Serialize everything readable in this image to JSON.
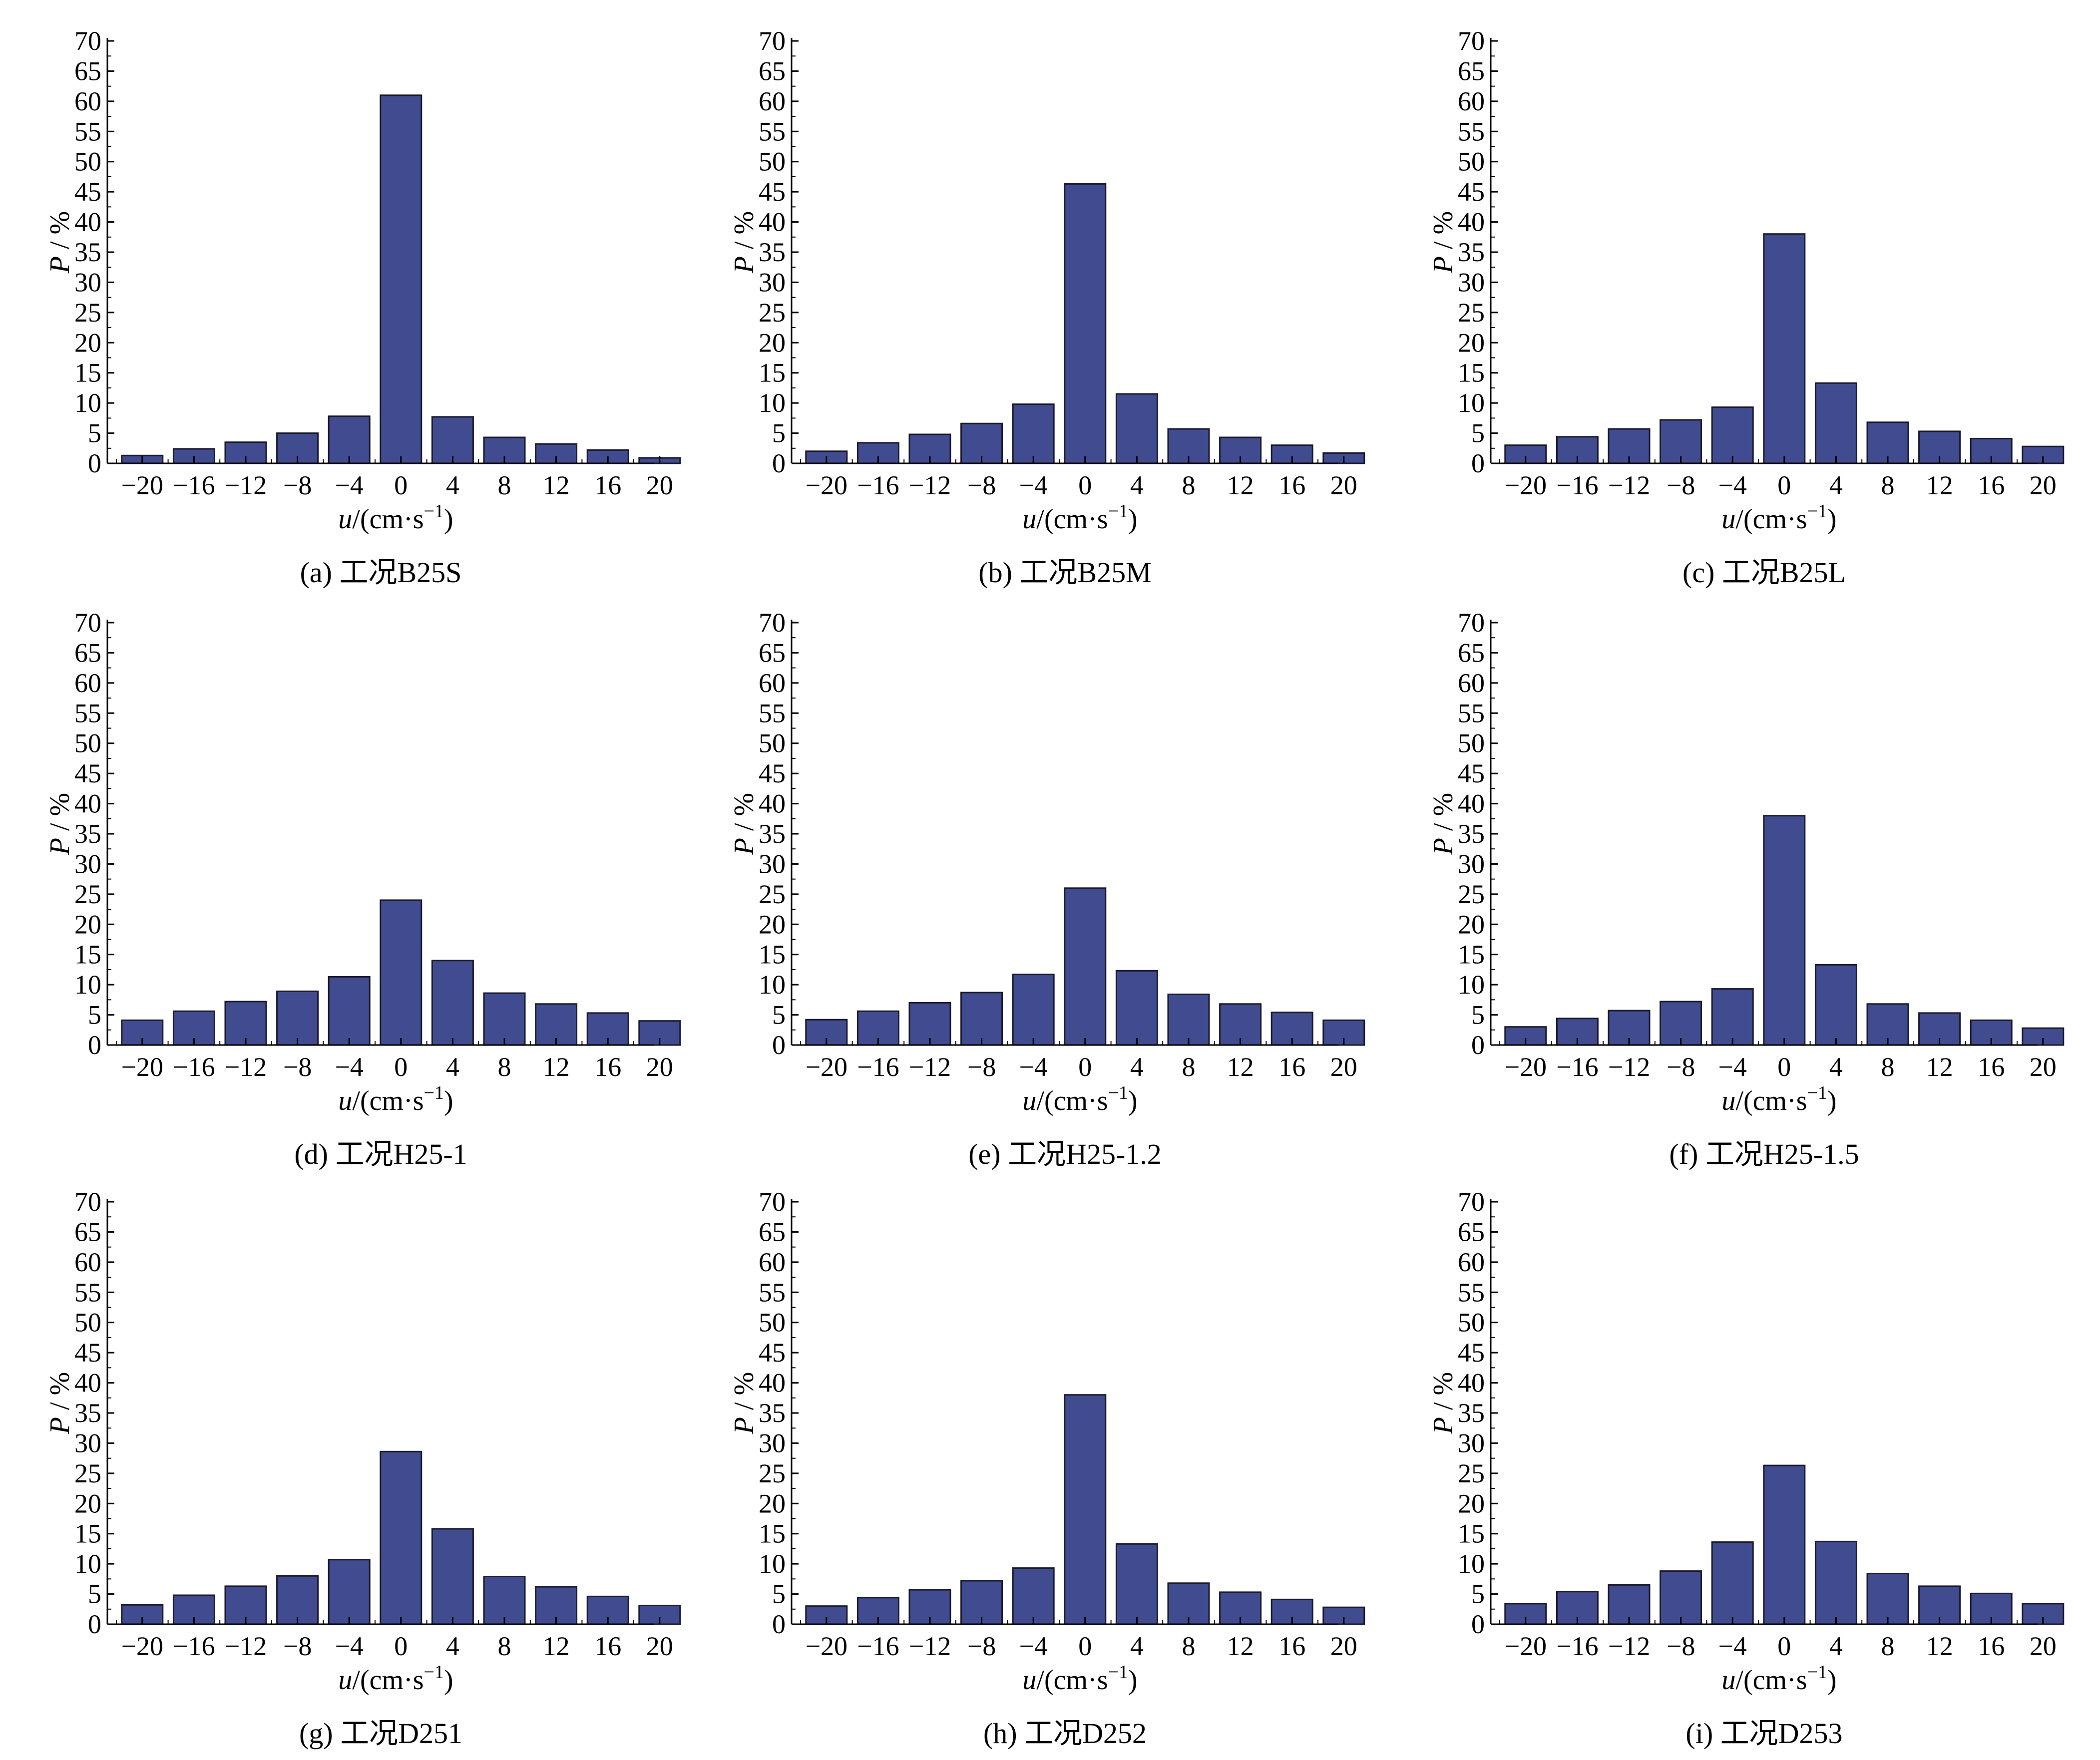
{
  "chart_data": [
    {
      "type": "bar",
      "caption": "(a) 工况B25S",
      "ylabel": "P / %",
      "xlabel": "u/(cm·s⁻¹)",
      "x_ticks": [
        "−20",
        "−16",
        "−12",
        "−8",
        "−4",
        "0",
        "4",
        "8",
        "12",
        "16",
        "20"
      ],
      "y_ticks": [
        "0",
        "5",
        "10",
        "15",
        "20",
        "25",
        "30",
        "35",
        "40",
        "45",
        "50",
        "55",
        "60",
        "65",
        "70"
      ],
      "ylim": [
        0,
        70
      ],
      "categories": [
        -20,
        -16,
        -12,
        -8,
        -4,
        0,
        4,
        8,
        12,
        16,
        20
      ],
      "values": [
        1.3,
        2.4,
        3.5,
        5.0,
        7.8,
        61.0,
        7.7,
        4.3,
        3.2,
        2.2,
        0.9
      ],
      "bar_color": "#414b8f"
    },
    {
      "type": "bar",
      "caption": "(b) 工况B25M",
      "ylabel": "P / %",
      "xlabel": "u/(cm·s⁻¹)",
      "x_ticks": [
        "−20",
        "−16",
        "−12",
        "−8",
        "−4",
        "0",
        "4",
        "8",
        "12",
        "16",
        "20"
      ],
      "y_ticks": [
        "0",
        "5",
        "10",
        "15",
        "20",
        "25",
        "30",
        "35",
        "40",
        "45",
        "50",
        "55",
        "60",
        "65",
        "70"
      ],
      "ylim": [
        0,
        70
      ],
      "categories": [
        -20,
        -16,
        -12,
        -8,
        -4,
        0,
        4,
        8,
        12,
        16,
        20
      ],
      "values": [
        2.0,
        3.4,
        4.8,
        6.6,
        9.8,
        46.3,
        11.5,
        5.7,
        4.3,
        3.0,
        1.7
      ],
      "bar_color": "#414b8f"
    },
    {
      "type": "bar",
      "caption": "(c) 工况B25L",
      "ylabel": "P / %",
      "xlabel": "u/(cm·s⁻¹)",
      "x_ticks": [
        "−20",
        "−16",
        "−12",
        "−8",
        "−4",
        "0",
        "4",
        "8",
        "12",
        "16",
        "20"
      ],
      "y_ticks": [
        "0",
        "5",
        "10",
        "15",
        "20",
        "25",
        "30",
        "35",
        "40",
        "45",
        "50",
        "55",
        "60",
        "65",
        "70"
      ],
      "ylim": [
        0,
        70
      ],
      "categories": [
        -20,
        -16,
        -12,
        -8,
        -4,
        0,
        4,
        8,
        12,
        16,
        20
      ],
      "values": [
        3.0,
        4.4,
        5.7,
        7.2,
        9.3,
        38.0,
        13.3,
        6.8,
        5.3,
        4.1,
        2.8
      ],
      "bar_color": "#414b8f"
    },
    {
      "type": "bar",
      "caption": "(d) 工况H25-1",
      "ylabel": "P / %",
      "xlabel": "u/(cm·s⁻¹)",
      "x_ticks": [
        "−20",
        "−16",
        "−12",
        "−8",
        "−4",
        "0",
        "4",
        "8",
        "12",
        "16",
        "20"
      ],
      "y_ticks": [
        "0",
        "5",
        "10",
        "15",
        "20",
        "25",
        "30",
        "35",
        "40",
        "45",
        "50",
        "55",
        "60",
        "65",
        "70"
      ],
      "ylim": [
        0,
        70
      ],
      "categories": [
        -20,
        -16,
        -12,
        -8,
        -4,
        0,
        4,
        8,
        12,
        16,
        20
      ],
      "values": [
        4.1,
        5.6,
        7.2,
        8.9,
        11.3,
        24.0,
        14.0,
        8.6,
        6.8,
        5.3,
        4.0
      ],
      "bar_color": "#414b8f"
    },
    {
      "type": "bar",
      "caption": "(e) 工况H25-1.2",
      "ylabel": "P / %",
      "xlabel": "u/(cm·s⁻¹)",
      "x_ticks": [
        "−20",
        "−16",
        "−12",
        "−8",
        "−4",
        "0",
        "4",
        "8",
        "12",
        "16",
        "20"
      ],
      "y_ticks": [
        "0",
        "5",
        "10",
        "15",
        "20",
        "25",
        "30",
        "35",
        "40",
        "45",
        "50",
        "55",
        "60",
        "65",
        "70"
      ],
      "ylim": [
        0,
        70
      ],
      "categories": [
        -20,
        -16,
        -12,
        -8,
        -4,
        0,
        4,
        8,
        12,
        16,
        20
      ],
      "values": [
        4.2,
        5.6,
        7.0,
        8.7,
        11.7,
        26.0,
        12.3,
        8.4,
        6.8,
        5.4,
        4.1
      ],
      "bar_color": "#414b8f"
    },
    {
      "type": "bar",
      "caption": "(f) 工况H25-1.5",
      "ylabel": "P / %",
      "xlabel": "u/(cm·s⁻¹)",
      "x_ticks": [
        "−20",
        "−16",
        "−12",
        "−8",
        "−4",
        "0",
        "4",
        "8",
        "12",
        "16",
        "20"
      ],
      "y_ticks": [
        "0",
        "5",
        "10",
        "15",
        "20",
        "25",
        "30",
        "35",
        "40",
        "45",
        "50",
        "55",
        "60",
        "65",
        "70"
      ],
      "ylim": [
        0,
        70
      ],
      "categories": [
        -20,
        -16,
        -12,
        -8,
        -4,
        0,
        4,
        8,
        12,
        16,
        20
      ],
      "values": [
        3.0,
        4.4,
        5.7,
        7.2,
        9.3,
        38.0,
        13.3,
        6.8,
        5.3,
        4.1,
        2.8
      ],
      "bar_color": "#414b8f"
    },
    {
      "type": "bar",
      "caption": "(g) 工况D251",
      "ylabel": "P / %",
      "xlabel": "u/(cm·s⁻¹)",
      "x_ticks": [
        "−20",
        "−16",
        "−12",
        "−8",
        "−4",
        "0",
        "4",
        "8",
        "12",
        "16",
        "20"
      ],
      "y_ticks": [
        "0",
        "5",
        "10",
        "15",
        "20",
        "25",
        "30",
        "35",
        "40",
        "45",
        "50",
        "55",
        "60",
        "65",
        "70"
      ],
      "ylim": [
        0,
        70
      ],
      "categories": [
        -20,
        -16,
        -12,
        -8,
        -4,
        0,
        4,
        8,
        12,
        16,
        20
      ],
      "values": [
        3.2,
        4.8,
        6.3,
        8.0,
        10.7,
        28.6,
        15.8,
        7.9,
        6.2,
        4.6,
        3.1
      ],
      "bar_color": "#414b8f"
    },
    {
      "type": "bar",
      "caption": "(h) 工况D252",
      "ylabel": "P / %",
      "xlabel": "u/(cm·s⁻¹)",
      "x_ticks": [
        "−20",
        "−16",
        "−12",
        "−8",
        "−4",
        "0",
        "4",
        "8",
        "12",
        "16",
        "20"
      ],
      "y_ticks": [
        "0",
        "5",
        "10",
        "15",
        "20",
        "25",
        "30",
        "35",
        "40",
        "45",
        "50",
        "55",
        "60",
        "65",
        "70"
      ],
      "ylim": [
        0,
        70
      ],
      "categories": [
        -20,
        -16,
        -12,
        -8,
        -4,
        0,
        4,
        8,
        12,
        16,
        20
      ],
      "values": [
        3.0,
        4.4,
        5.7,
        7.2,
        9.3,
        38.0,
        13.3,
        6.8,
        5.3,
        4.1,
        2.8
      ],
      "bar_color": "#414b8f"
    },
    {
      "type": "bar",
      "caption": "(i) 工况D253",
      "ylabel": "P / %",
      "xlabel": "u/(cm·s⁻¹)",
      "x_ticks": [
        "−20",
        "−16",
        "−12",
        "−8",
        "−4",
        "0",
        "4",
        "8",
        "12",
        "16",
        "20"
      ],
      "y_ticks": [
        "0",
        "5",
        "10",
        "15",
        "20",
        "25",
        "30",
        "35",
        "40",
        "45",
        "50",
        "55",
        "60",
        "65",
        "70"
      ],
      "ylim": [
        0,
        70
      ],
      "categories": [
        -20,
        -16,
        -12,
        -8,
        -4,
        0,
        4,
        8,
        12,
        16,
        20
      ],
      "values": [
        3.4,
        5.4,
        6.5,
        8.8,
        13.6,
        26.3,
        13.7,
        8.4,
        6.3,
        5.1,
        3.4
      ],
      "bar_color": "#414b8f"
    }
  ]
}
